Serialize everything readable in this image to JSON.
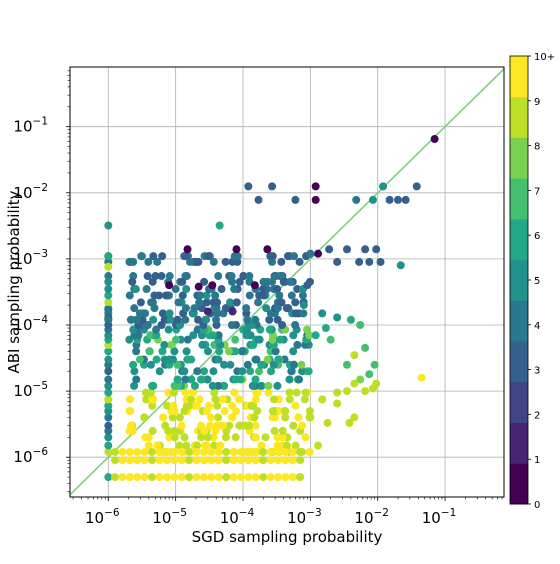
{
  "chart_data": {
    "type": "scatter",
    "title": "",
    "xlabel": "SGD sampling probability",
    "ylabel": "ABI sampling probability",
    "xscale": "log",
    "yscale": "log",
    "xlim": [
      2.7e-07,
      0.75
    ],
    "ylim": [
      2.5e-07,
      0.8
    ],
    "grid": true,
    "x_ticks": [
      {
        "value": 1e-06,
        "mantissa": "10",
        "exp": "−6"
      },
      {
        "value": 1e-05,
        "mantissa": "10",
        "exp": "−5"
      },
      {
        "value": 0.0001,
        "mantissa": "10",
        "exp": "−4"
      },
      {
        "value": 0.001,
        "mantissa": "10",
        "exp": "−3"
      },
      {
        "value": 0.01,
        "mantissa": "10",
        "exp": "−2"
      },
      {
        "value": 0.1,
        "mantissa": "10",
        "exp": "−1"
      }
    ],
    "y_ticks": [
      {
        "value": 1e-06,
        "mantissa": "10",
        "exp": "−6"
      },
      {
        "value": 1e-05,
        "mantissa": "10",
        "exp": "−5"
      },
      {
        "value": 0.0001,
        "mantissa": "10",
        "exp": "−4"
      },
      {
        "value": 0.001,
        "mantissa": "10",
        "exp": "−3"
      },
      {
        "value": 0.01,
        "mantissa": "10",
        "exp": "−2"
      },
      {
        "value": 0.1,
        "mantissa": "10",
        "exp": "−1"
      }
    ],
    "reference_line": {
      "type": "y=x",
      "color": "#7fcf7f"
    },
    "colorbar": {
      "colormap": "viridis",
      "bins": 11,
      "tick_labels": [
        "0",
        "1",
        "2",
        "3",
        "4",
        "5",
        "6",
        "7",
        "8",
        "9",
        "10+"
      ],
      "colors": [
        "#440154",
        "#482475",
        "#414487",
        "#355f8d",
        "#2a788e",
        "#21918c",
        "#22a884",
        "#44bf70",
        "#7ad151",
        "#bddf26",
        "#fde725"
      ]
    },
    "points": [
      [
        0.07,
        0.065,
        0
      ],
      [
        0.0012,
        0.0125,
        0
      ],
      [
        0.0012,
        0.0078,
        0
      ],
      [
        0.0013,
        0.0012,
        0
      ],
      [
        0.00023,
        0.0014,
        0
      ],
      [
        8e-05,
        0.0014,
        0
      ],
      [
        1.5e-05,
        0.0014,
        0
      ],
      [
        2.2e-05,
        0.00038,
        0
      ],
      [
        8e-06,
        0.0004,
        0
      ],
      [
        3.5e-05,
        0.0004,
        0
      ],
      [
        0.00015,
        0.0004,
        0
      ],
      [
        7e-05,
        0.00016,
        1
      ],
      [
        3e-05,
        0.00016,
        1
      ],
      [
        0.00012,
        0.0125,
        3
      ],
      [
        0.00027,
        0.0125,
        3
      ],
      [
        0.00017,
        0.0078,
        3
      ],
      [
        0.0006,
        0.0078,
        3
      ],
      [
        0.02,
        0.0078,
        3
      ],
      [
        0.015,
        0.0078,
        3
      ],
      [
        0.026,
        0.0078,
        3
      ],
      [
        0.038,
        0.0125,
        3
      ],
      [
        0.0048,
        0.0078,
        4
      ],
      [
        0.012,
        0.0125,
        5
      ],
      [
        0.0085,
        0.0078,
        5
      ],
      [
        4.5e-05,
        0.0032,
        6
      ],
      [
        0.001,
        0.0012,
        4
      ],
      [
        0.0019,
        0.0014,
        3
      ],
      [
        0.0035,
        0.0014,
        3
      ],
      [
        0.0065,
        0.0014,
        3
      ],
      [
        0.0095,
        0.0014,
        3
      ],
      [
        0.0053,
        0.0009,
        3
      ],
      [
        0.0025,
        0.0009,
        3
      ],
      [
        0.0075,
        0.0009,
        3
      ],
      [
        0.011,
        0.0009,
        3
      ],
      [
        0.022,
        0.0008,
        5
      ],
      [
        0.0009,
        0.0004,
        3
      ],
      [
        0.0008,
        0.0002,
        5
      ],
      [
        0.0015,
        0.00015,
        5
      ],
      [
        0.0025,
        0.00013,
        5
      ],
      [
        0.004,
        0.00012,
        6
      ],
      [
        0.0055,
        0.0001,
        7
      ],
      [
        0.0017,
        9e-05,
        6
      ],
      [
        0.0012,
        7e-05,
        6
      ],
      [
        0.002,
        6e-05,
        7
      ],
      [
        0.0045,
        3.5e-05,
        9
      ],
      [
        0.0035,
        2.5e-05,
        7
      ],
      [
        0.0065,
        4.5e-05,
        7
      ],
      [
        0.009,
        2.5e-05,
        7
      ],
      [
        0.0075,
        1.8e-05,
        7
      ],
      [
        0.0055,
        1.5e-05,
        8
      ],
      [
        0.0035,
        1e-05,
        9
      ],
      [
        0.0045,
        1.3e-05,
        9
      ],
      [
        0.0065,
        1e-05,
        9
      ],
      [
        0.0085,
        1.1e-05,
        9
      ],
      [
        0.0025,
        9.5e-06,
        9
      ],
      [
        0.0015,
        7.5e-06,
        9
      ],
      [
        0.0025,
        6.5e-06,
        9
      ],
      [
        0.0045,
        4e-06,
        9
      ],
      [
        0.0038,
        3.3e-06,
        9
      ],
      [
        0.0018,
        3.3e-06,
        9
      ],
      [
        0.001,
        4e-06,
        9
      ],
      [
        0.045,
        1.6e-05,
        10
      ],
      [
        0.0095,
        1.3e-05,
        9
      ],
      [
        0.0013,
        1.5e-06,
        9
      ],
      [
        0.00075,
        1.2e-06,
        9
      ],
      [
        0.0007,
        5e-07,
        9
      ]
    ],
    "clusters": [
      {
        "ys": [
          1.2e-06,
          1.5e-06,
          2e-06,
          2.5e-06,
          3e-06,
          4e-06,
          5e-06,
          6e-06,
          7.5e-06,
          9.5e-06
        ],
        "palette": [
          9,
          10,
          10,
          10,
          9,
          10,
          9,
          9,
          10,
          9
        ]
      },
      {
        "ys": [
          1.2e-05,
          1.5e-05,
          2e-05,
          2.5e-05,
          3e-05,
          4e-05,
          5e-05,
          6e-05,
          7e-05,
          8.5e-05
        ],
        "palette": [
          7,
          6,
          8,
          5,
          6,
          4,
          5,
          6,
          4,
          5
        ]
      },
      {
        "ys": [
          0.0001,
          0.00012,
          0.00015,
          0.00018,
          0.00022,
          0.00028,
          0.00035
        ],
        "palette": [
          3,
          4,
          5,
          3,
          4,
          3,
          4
        ]
      },
      {
        "ys": [
          0.0009,
          0.0011,
          0.00055,
          0.00045
        ],
        "palette": [
          3,
          4,
          3,
          4
        ]
      }
    ]
  }
}
